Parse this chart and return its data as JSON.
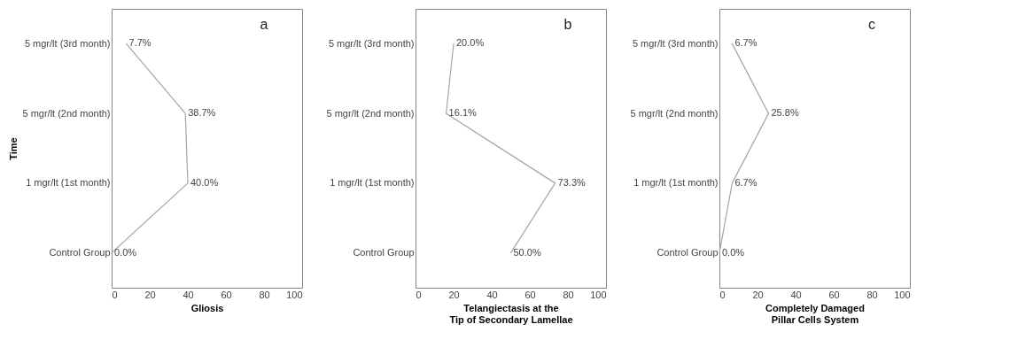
{
  "chart_data": [
    {
      "type": "line",
      "orientation": "horizontal",
      "xlabel": "Gliosis",
      "ylabel": "Time",
      "annotations": [
        "a"
      ],
      "categories": [
        "5 mgr/lt (3rd month)",
        "5 mgr/lt (2nd month)",
        "1 mgr/lt (1st month)",
        "Control Group"
      ],
      "color": "#a6a6a6",
      "values": [
        7.7,
        38.7,
        40.0,
        0.0
      ],
      "value_labels": [
        "7.7%",
        "38.7%",
        "40.0%",
        "0.0%"
      ],
      "xlim": [
        0,
        100
      ],
      "xticks": [
        0,
        20,
        40,
        60,
        80,
        100
      ],
      "grid": false
    },
    {
      "type": "line",
      "orientation": "horizontal",
      "xlabel": "Telangiectasis at the Tip of Secondary Lamellae",
      "annotations": [
        "b"
      ],
      "categories": [
        "5 mgr/lt (3rd month)",
        "5 mgr/lt (2nd month)",
        "1 mgr/lt (1st month)",
        "Control Group"
      ],
      "color": "#a6a6a6",
      "values": [
        20.0,
        16.1,
        73.3,
        50.0
      ],
      "value_labels": [
        "20.0%",
        "16.1%",
        "73.3%",
        "50.0%"
      ],
      "xlim": [
        0,
        100
      ],
      "xticks": [
        0,
        20,
        40,
        60,
        80,
        100
      ],
      "grid": false
    },
    {
      "type": "line",
      "orientation": "horizontal",
      "xlabel": "Completely Damaged Pillar Cells System",
      "annotations": [
        "c"
      ],
      "categories": [
        "5 mgr/lt (3rd month)",
        "5 mgr/lt (2nd month)",
        "1 mgr/lt (1st month)",
        "Control Group"
      ],
      "color": "#a6a6a6",
      "values": [
        6.7,
        25.8,
        6.7,
        0.0
      ],
      "value_labels": [
        "6.7%",
        "25.8%",
        "6.7%",
        "0.0%"
      ],
      "xlim": [
        0,
        100
      ],
      "xticks": [
        0,
        20,
        40,
        60,
        80,
        100
      ],
      "grid": false
    }
  ]
}
